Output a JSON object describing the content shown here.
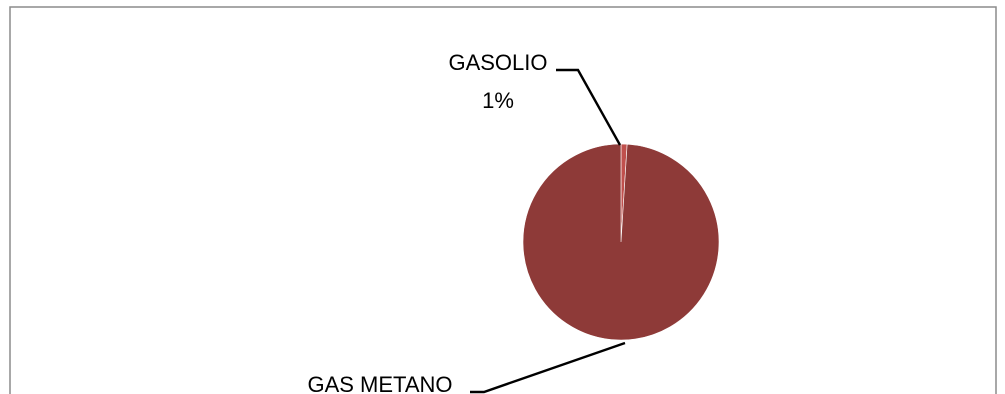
{
  "chart_data": {
    "type": "pie",
    "title": "",
    "slices": [
      {
        "label": "GASOLIO",
        "value": 1,
        "value_label": "1%",
        "color": "#C0504D"
      },
      {
        "label": "GAS METANO",
        "value": 99,
        "value_label": "",
        "color": "#8E3A38"
      }
    ],
    "legend": "none"
  },
  "colors": {
    "frame_border": "#8C8C8C",
    "background": "#FFFFFF",
    "slice_edge": "#FFFFFF"
  }
}
